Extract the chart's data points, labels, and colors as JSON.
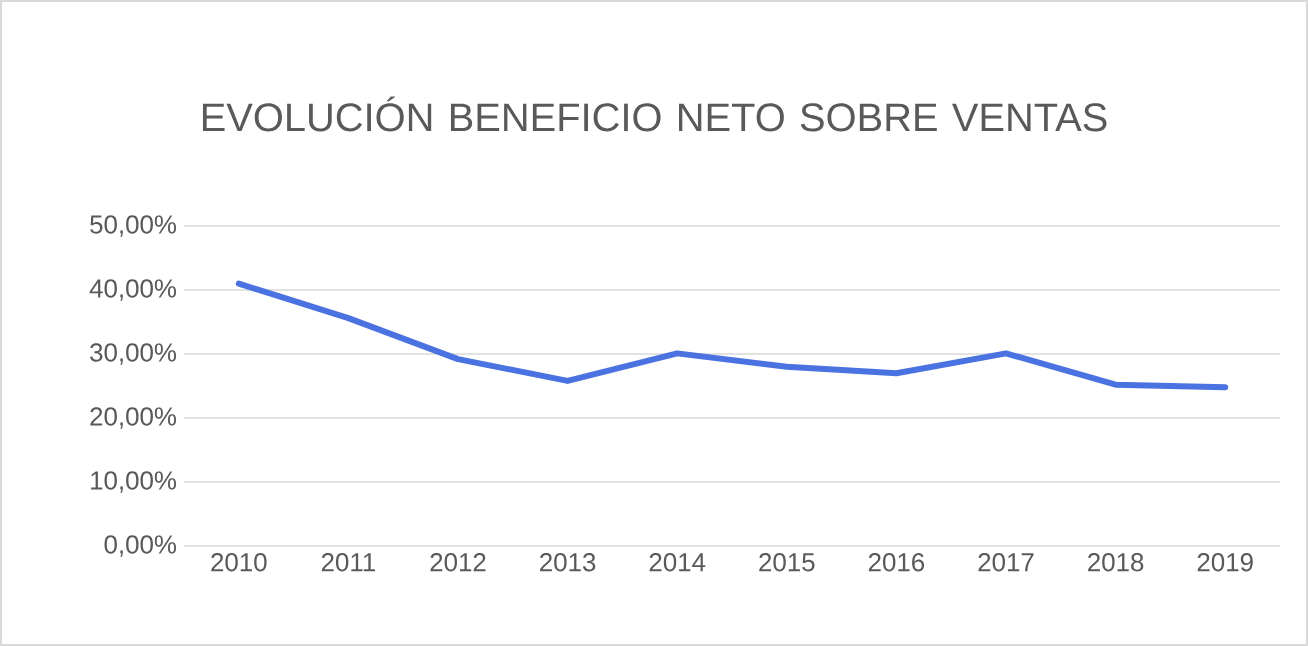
{
  "chart_data": {
    "type": "line",
    "title": "EVOLUCIÓN BENEFICIO NETO SOBRE VENTAS",
    "categories": [
      "2010",
      "2011",
      "2012",
      "2013",
      "2014",
      "2015",
      "2016",
      "2017",
      "2018",
      "2019"
    ],
    "series": [
      {
        "color": "#4a72e0",
        "values": [
          41,
          35.6,
          29.2,
          25.8,
          30.1,
          28,
          27,
          30.1,
          25.2,
          24.8
        ]
      }
    ],
    "ylim": [
      0,
      50
    ],
    "yticks": [
      {
        "value": 0,
        "label": "0,00%"
      },
      {
        "value": 10,
        "label": "10,00%"
      },
      {
        "value": 20,
        "label": "20,00%"
      },
      {
        "value": 30,
        "label": "30,00%"
      },
      {
        "value": 40,
        "label": "40,00%"
      },
      {
        "value": 50,
        "label": "50,00%"
      }
    ],
    "grid": "y",
    "legend": false,
    "marker": "none",
    "line_style": "solid"
  }
}
